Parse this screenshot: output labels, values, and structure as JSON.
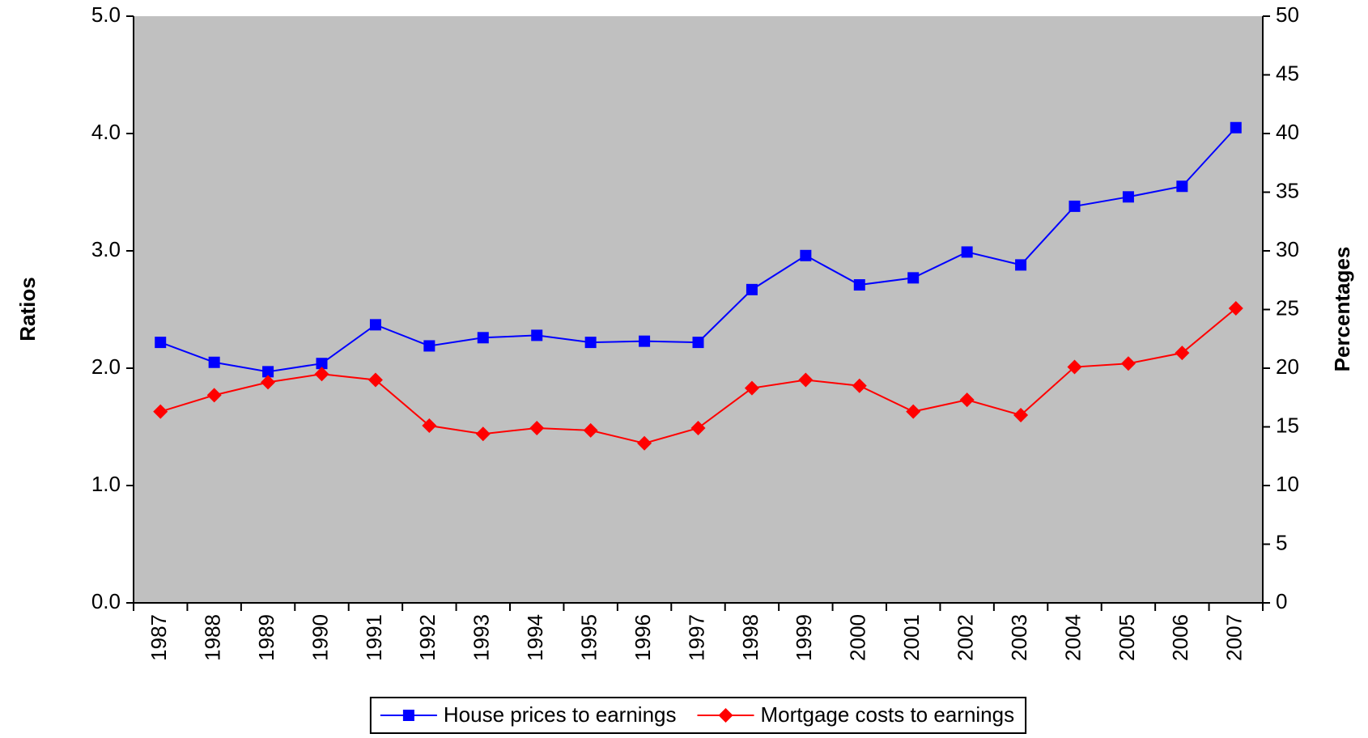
{
  "chart_data": {
    "type": "line",
    "ylabel": "Ratios",
    "y2label": "Percentages",
    "categories": [
      "1987",
      "1988",
      "1989",
      "1990",
      "1991",
      "1992",
      "1993",
      "1994",
      "1995",
      "1996",
      "1997",
      "1998",
      "1999",
      "2000",
      "2001",
      "2002",
      "2003",
      "2004",
      "2005",
      "2006",
      "2007"
    ],
    "series": [
      {
        "name": "House prices to earnings",
        "color": "#0000ff",
        "marker": "square",
        "values": [
          2.22,
          2.05,
          1.97,
          2.04,
          2.37,
          2.19,
          2.26,
          2.28,
          2.22,
          2.23,
          2.22,
          2.67,
          2.96,
          2.71,
          2.77,
          2.99,
          2.88,
          3.38,
          3.46,
          3.55,
          4.05
        ]
      },
      {
        "name": "Mortgage costs to earnings",
        "color": "#ff0000",
        "marker": "diamond",
        "axis": "y2",
        "values": [
          16.3,
          17.7,
          18.8,
          19.5,
          19.0,
          15.1,
          14.4,
          14.9,
          14.7,
          13.6,
          14.9,
          18.3,
          19.0,
          18.5,
          16.3,
          17.3,
          16.0,
          20.1,
          20.4,
          21.3,
          25.1
        ]
      }
    ],
    "ylim": [
      0,
      5
    ],
    "yticks": [
      {
        "value": 0,
        "label": "0.0"
      },
      {
        "value": 1,
        "label": "1.0"
      },
      {
        "value": 2,
        "label": "2.0"
      },
      {
        "value": 3,
        "label": "3.0"
      },
      {
        "value": 4,
        "label": "4.0"
      },
      {
        "value": 5,
        "label": "5.0"
      }
    ],
    "y2lim": [
      0,
      50
    ],
    "y2ticks": [
      0,
      5,
      10,
      15,
      20,
      25,
      30,
      35,
      40,
      45,
      50
    ],
    "plot_background": "#c0c0c0",
    "legend": "bottom"
  }
}
